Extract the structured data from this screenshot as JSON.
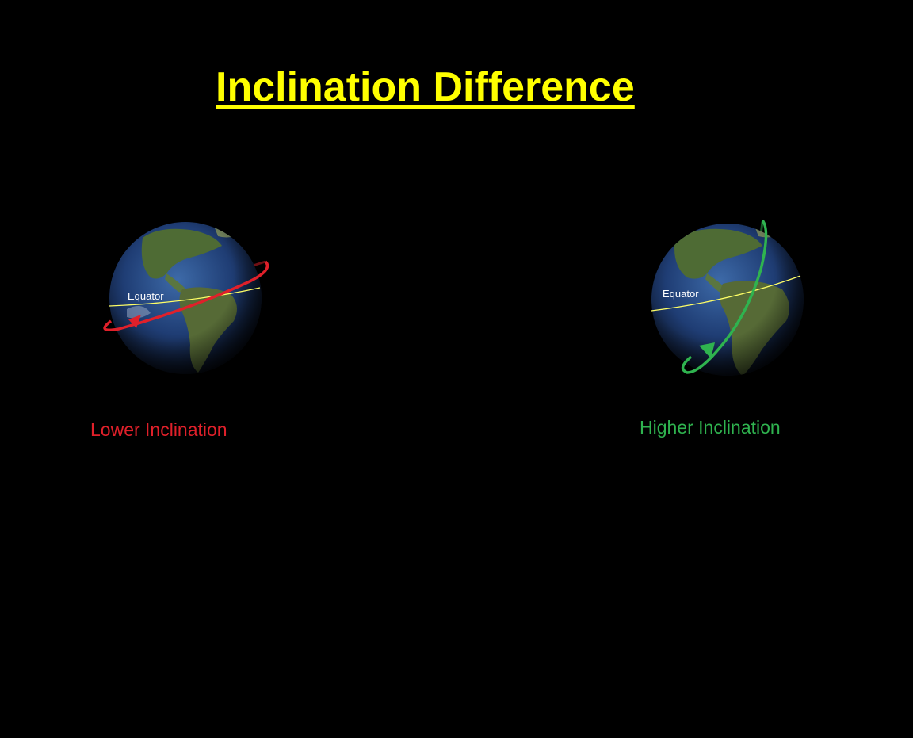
{
  "title": "Inclination Difference",
  "left": {
    "equator_label": "Equator",
    "caption": "Lower Inclination",
    "orbit_color": "#e0202a"
  },
  "right": {
    "equator_label": "Equator",
    "caption": "Higher Inclination",
    "orbit_color": "#2fb34f"
  },
  "colors": {
    "background": "#000000",
    "title": "#ffff00",
    "equator_line": "#ffff66",
    "ocean": "#1f3d74",
    "land": "#4e6b34"
  }
}
